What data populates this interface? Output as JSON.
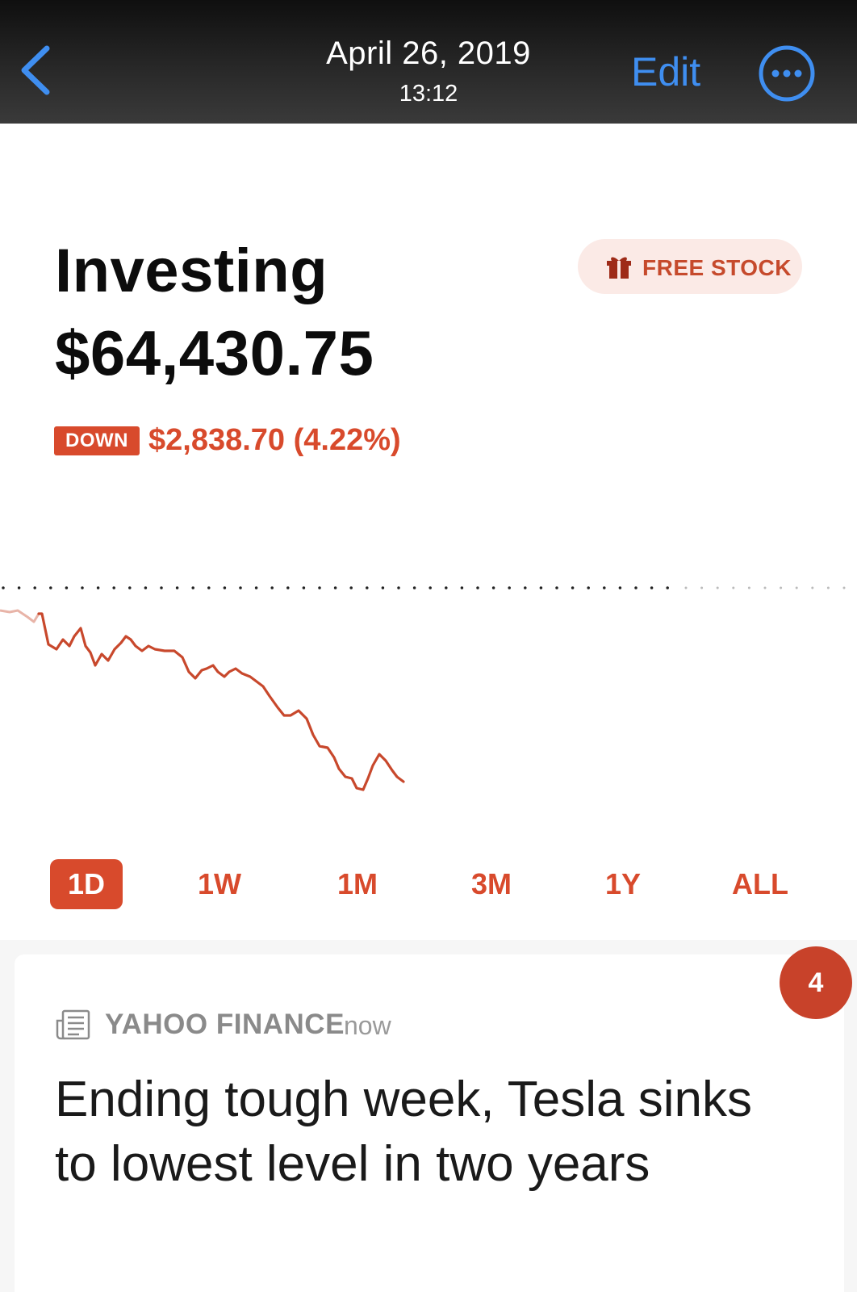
{
  "topbar": {
    "date": "April 26, 2019",
    "time": "13:12",
    "edit_label": "Edit",
    "back_icon": "chevron-left-icon",
    "more_icon": "ellipsis-circle-icon",
    "accent": "#3f8ef0"
  },
  "portfolio": {
    "title": "Investing",
    "value": "$64,430.75",
    "change_badge": "DOWN",
    "change_text": "$2,838.70 (4.22%)",
    "free_stock_label": "FREE STOCK",
    "accent": "#d84a2c"
  },
  "ranges": [
    {
      "label": "1D",
      "active": true
    },
    {
      "label": "1W",
      "active": false
    },
    {
      "label": "1M",
      "active": false
    },
    {
      "label": "3M",
      "active": false
    },
    {
      "label": "1Y",
      "active": false
    },
    {
      "label": "ALL",
      "active": false
    }
  ],
  "news": {
    "count": "4",
    "source": "YAHOO FINANCE",
    "time": "now",
    "headline": "Ending tough week, Tesla sinks to lowest level in two years"
  }
}
